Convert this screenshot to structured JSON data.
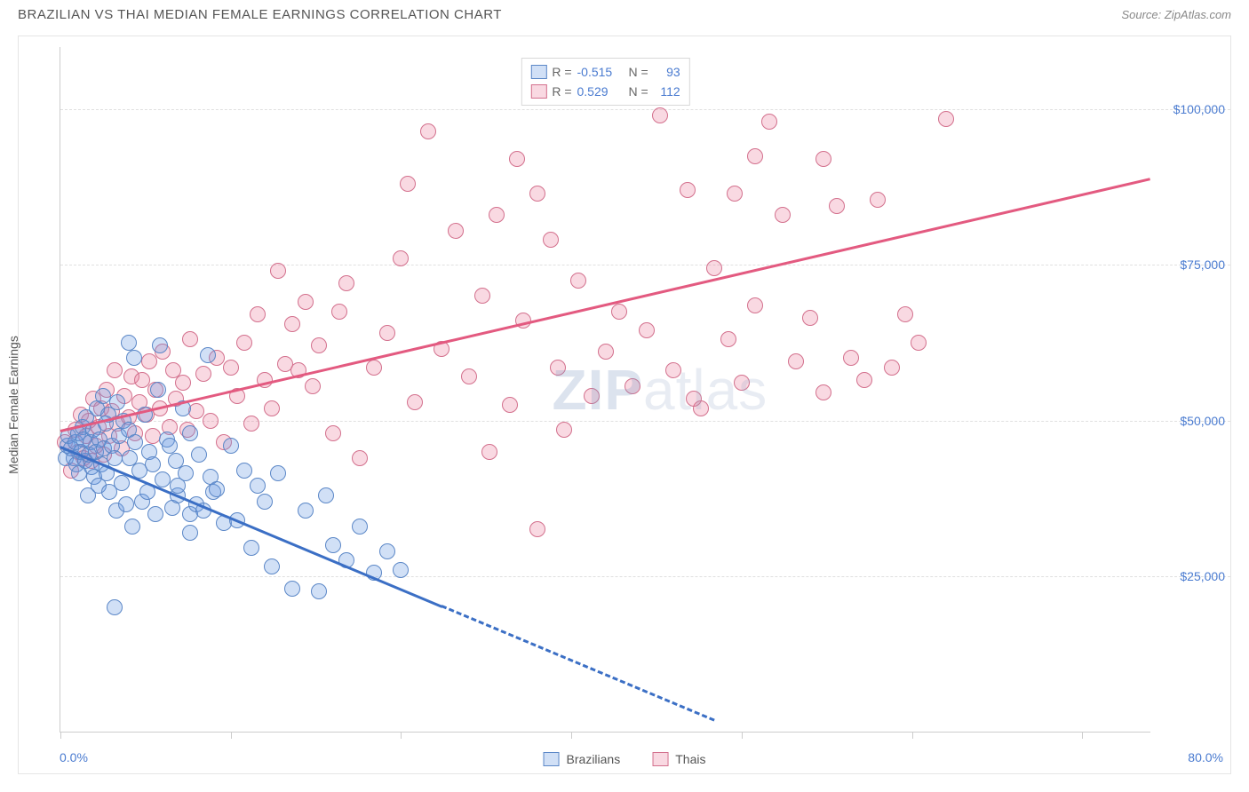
{
  "header": {
    "title": "BRAZILIAN VS THAI MEDIAN FEMALE EARNINGS CORRELATION CHART",
    "source": "Source: ZipAtlas.com"
  },
  "watermark": {
    "prefix": "ZIP",
    "suffix": "atlas"
  },
  "chart": {
    "type": "scatter",
    "ylabel": "Median Female Earnings",
    "xlim": [
      0,
      80
    ],
    "ylim": [
      0,
      110000
    ],
    "xticks_pct": [
      0,
      12.5,
      25,
      37.5,
      50,
      62.5,
      75
    ],
    "xtick_labels": {
      "min": "0.0%",
      "max": "80.0%"
    },
    "ygrid": [
      {
        "v": 25000,
        "label": "$25,000"
      },
      {
        "v": 50000,
        "label": "$50,000"
      },
      {
        "v": 75000,
        "label": "$75,000"
      },
      {
        "v": 100000,
        "label": "$100,000"
      }
    ],
    "background_color": "#ffffff",
    "grid_color": "#e0e0e0",
    "axis_color": "#cccccc",
    "label_color": "#4a7bd0"
  },
  "series": {
    "brazilians": {
      "label": "Brazilians",
      "fill": "rgba(102,153,225,0.30)",
      "stroke": "#5b87c7",
      "marker_radius": 9,
      "trend": {
        "x0": 0,
        "y0": 46000,
        "x1": 48,
        "y1": 2000,
        "color": "#3b6fc5",
        "width": 3,
        "dash_after_x": 28
      },
      "R": "-0.515",
      "N": "93",
      "points": [
        [
          0.4,
          44000
        ],
        [
          0.5,
          46000
        ],
        [
          0.6,
          47500
        ],
        [
          0.8,
          45500
        ],
        [
          1.0,
          44000
        ],
        [
          1.1,
          46500
        ],
        [
          1.2,
          43000
        ],
        [
          1.3,
          48000
        ],
        [
          1.4,
          41500
        ],
        [
          1.5,
          45000
        ],
        [
          1.6,
          49000
        ],
        [
          1.7,
          47000
        ],
        [
          1.8,
          43500
        ],
        [
          1.9,
          50500
        ],
        [
          2.0,
          38000
        ],
        [
          2.1,
          44500
        ],
        [
          2.2,
          46500
        ],
        [
          2.3,
          42500
        ],
        [
          2.4,
          48500
        ],
        [
          2.5,
          41000
        ],
        [
          2.6,
          45000
        ],
        [
          2.7,
          52000
        ],
        [
          2.8,
          39500
        ],
        [
          2.9,
          47000
        ],
        [
          3.0,
          43000
        ],
        [
          3.1,
          54000
        ],
        [
          3.2,
          45500
        ],
        [
          3.3,
          49500
        ],
        [
          3.4,
          41500
        ],
        [
          3.5,
          51000
        ],
        [
          3.6,
          38500
        ],
        [
          3.8,
          46000
        ],
        [
          4.0,
          44000
        ],
        [
          4.1,
          35500
        ],
        [
          4.2,
          53000
        ],
        [
          4.3,
          47500
        ],
        [
          4.5,
          40000
        ],
        [
          4.6,
          50000
        ],
        [
          4.8,
          36500
        ],
        [
          5.0,
          48500
        ],
        [
          5.1,
          44000
        ],
        [
          5.3,
          33000
        ],
        [
          5.4,
          60000
        ],
        [
          5.5,
          46500
        ],
        [
          5.8,
          42000
        ],
        [
          6.0,
          37000
        ],
        [
          6.2,
          51000
        ],
        [
          6.4,
          38500
        ],
        [
          6.5,
          45000
        ],
        [
          6.8,
          43000
        ],
        [
          7.0,
          35000
        ],
        [
          7.2,
          55000
        ],
        [
          7.3,
          62000
        ],
        [
          7.5,
          40500
        ],
        [
          7.8,
          47000
        ],
        [
          8.0,
          46000
        ],
        [
          8.2,
          36000
        ],
        [
          8.5,
          43500
        ],
        [
          8.6,
          38000
        ],
        [
          8.6,
          39500
        ],
        [
          9.0,
          52000
        ],
        [
          9.2,
          41500
        ],
        [
          9.5,
          32000
        ],
        [
          9.5,
          48000
        ],
        [
          9.5,
          35000
        ],
        [
          10.0,
          36500
        ],
        [
          10.2,
          44500
        ],
        [
          10.5,
          35500
        ],
        [
          10.8,
          60500
        ],
        [
          11.0,
          41000
        ],
        [
          11.2,
          38500
        ],
        [
          11.5,
          39000
        ],
        [
          12.0,
          33500
        ],
        [
          12.5,
          46000
        ],
        [
          13.0,
          34000
        ],
        [
          13.5,
          42000
        ],
        [
          14.0,
          29500
        ],
        [
          14.5,
          39500
        ],
        [
          15.0,
          37000
        ],
        [
          15.5,
          26500
        ],
        [
          16.0,
          41500
        ],
        [
          17.0,
          23000
        ],
        [
          18.0,
          35500
        ],
        [
          19.0,
          22500
        ],
        [
          19.5,
          38000
        ],
        [
          20.0,
          30000
        ],
        [
          21.0,
          27500
        ],
        [
          22.0,
          33000
        ],
        [
          23.0,
          25500
        ],
        [
          24.0,
          29000
        ],
        [
          25.0,
          26000
        ],
        [
          4.0,
          20000
        ],
        [
          5.0,
          62500
        ]
      ]
    },
    "thais": {
      "label": "Thais",
      "fill": "rgba(235,120,150,0.28)",
      "stroke": "#d3708d",
      "marker_radius": 9,
      "trend": {
        "x0": 0,
        "y0": 48500,
        "x1": 80,
        "y1": 89000,
        "color": "#e35a80",
        "width": 3
      },
      "R": "0.529",
      "N": "112",
      "points": [
        [
          0.3,
          46500
        ],
        [
          0.8,
          42000
        ],
        [
          1.1,
          48500
        ],
        [
          1.3,
          45000
        ],
        [
          1.5,
          51000
        ],
        [
          1.7,
          44000
        ],
        [
          1.9,
          47500
        ],
        [
          2.1,
          50000
        ],
        [
          2.3,
          43500
        ],
        [
          2.4,
          53500
        ],
        [
          2.6,
          46000
        ],
        [
          2.8,
          49000
        ],
        [
          3.0,
          52000
        ],
        [
          3.2,
          44500
        ],
        [
          3.4,
          55000
        ],
        [
          3.6,
          47500
        ],
        [
          3.8,
          51500
        ],
        [
          4.0,
          58000
        ],
        [
          4.2,
          49500
        ],
        [
          4.5,
          45500
        ],
        [
          4.7,
          54000
        ],
        [
          5.0,
          50500
        ],
        [
          5.2,
          57000
        ],
        [
          5.5,
          48000
        ],
        [
          5.8,
          53000
        ],
        [
          6.0,
          56500
        ],
        [
          6.3,
          51000
        ],
        [
          6.5,
          59500
        ],
        [
          6.8,
          47500
        ],
        [
          7.0,
          55000
        ],
        [
          7.3,
          52000
        ],
        [
          7.5,
          61000
        ],
        [
          8.0,
          49000
        ],
        [
          8.3,
          58000
        ],
        [
          8.5,
          53500
        ],
        [
          9.0,
          56000
        ],
        [
          9.3,
          48500
        ],
        [
          9.5,
          63000
        ],
        [
          10.0,
          51500
        ],
        [
          10.5,
          57500
        ],
        [
          11.0,
          50000
        ],
        [
          11.5,
          60000
        ],
        [
          12.0,
          46500
        ],
        [
          12.5,
          58500
        ],
        [
          13.0,
          54000
        ],
        [
          13.5,
          62500
        ],
        [
          14.0,
          49500
        ],
        [
          14.5,
          67000
        ],
        [
          15.0,
          56500
        ],
        [
          15.5,
          52000
        ],
        [
          16.0,
          74000
        ],
        [
          16.5,
          59000
        ],
        [
          17.0,
          65500
        ],
        [
          17.5,
          58000
        ],
        [
          18.0,
          69000
        ],
        [
          18.5,
          55500
        ],
        [
          19.0,
          62000
        ],
        [
          20.0,
          48000
        ],
        [
          20.5,
          67500
        ],
        [
          21.0,
          72000
        ],
        [
          22.0,
          44000
        ],
        [
          23.0,
          58500
        ],
        [
          24.0,
          64000
        ],
        [
          25.0,
          76000
        ],
        [
          25.5,
          88000
        ],
        [
          26.0,
          53000
        ],
        [
          27.0,
          96500
        ],
        [
          28.0,
          61500
        ],
        [
          29.0,
          80500
        ],
        [
          30.0,
          57000
        ],
        [
          31.0,
          70000
        ],
        [
          31.5,
          45000
        ],
        [
          32.0,
          83000
        ],
        [
          33.0,
          52500
        ],
        [
          33.5,
          92000
        ],
        [
          34.0,
          66000
        ],
        [
          35.0,
          86500
        ],
        [
          36.0,
          79000
        ],
        [
          36.5,
          58500
        ],
        [
          37.0,
          48500
        ],
        [
          38.0,
          72500
        ],
        [
          39.0,
          54000
        ],
        [
          40.0,
          61000
        ],
        [
          41.0,
          67500
        ],
        [
          42.0,
          55500
        ],
        [
          43.0,
          64500
        ],
        [
          44.0,
          99000
        ],
        [
          45.0,
          58000
        ],
        [
          46.0,
          87000
        ],
        [
          47.0,
          52000
        ],
        [
          48.0,
          74500
        ],
        [
          49.0,
          63000
        ],
        [
          50.0,
          56000
        ],
        [
          51.0,
          68500
        ],
        [
          52.0,
          98000
        ],
        [
          49.5,
          86500
        ],
        [
          53.0,
          83000
        ],
        [
          54.0,
          59500
        ],
        [
          55.0,
          66500
        ],
        [
          56.0,
          54500
        ],
        [
          57.0,
          84500
        ],
        [
          58.0,
          60000
        ],
        [
          59.0,
          56500
        ],
        [
          60.0,
          85500
        ],
        [
          61.0,
          58500
        ],
        [
          62.0,
          67000
        ],
        [
          63.0,
          62500
        ],
        [
          35.0,
          32500
        ],
        [
          65.0,
          98500
        ],
        [
          56.0,
          92000
        ],
        [
          51.0,
          92500
        ],
        [
          46.5,
          53500
        ]
      ]
    }
  },
  "legend": {
    "brazilians": "Brazilians",
    "thais": "Thais"
  }
}
